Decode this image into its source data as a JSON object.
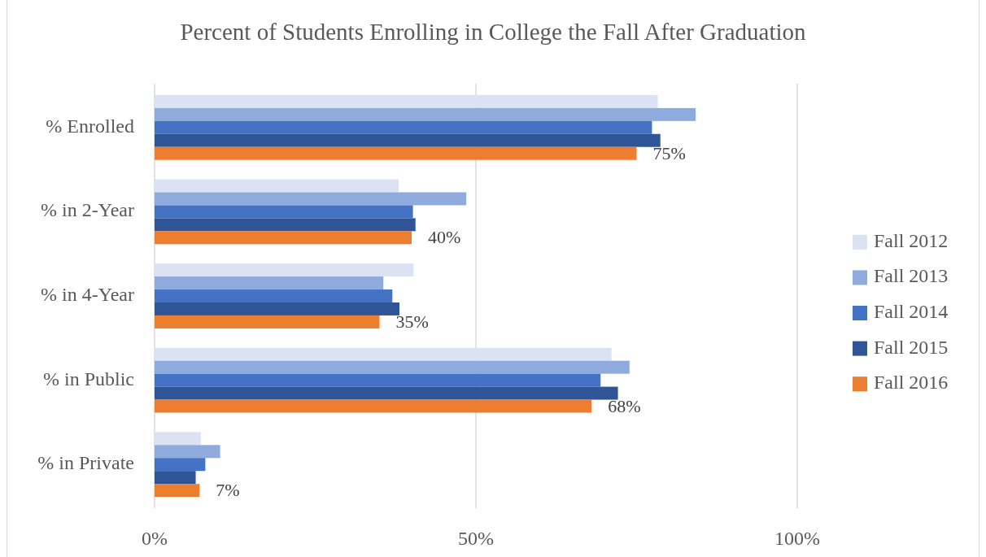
{
  "chart_data": {
    "type": "bar",
    "orientation": "horizontal",
    "title": "Percent of Students Enrolling in College the Fall After Graduation",
    "categories": [
      "% Enrolled",
      "% in 2-Year",
      "% in 4-Year",
      "% in Public",
      "% in Private"
    ],
    "series": [
      {
        "name": "Fall 2012",
        "color": "#dae2f3",
        "values": [
          78.3,
          38.0,
          40.3,
          71.1,
          7.2
        ]
      },
      {
        "name": "Fall 2013",
        "color": "#8faadc",
        "values": [
          84.2,
          48.5,
          35.6,
          73.9,
          10.2
        ]
      },
      {
        "name": "Fall 2014",
        "color": "#4472c4",
        "values": [
          77.4,
          40.2,
          37.0,
          69.4,
          7.9
        ]
      },
      {
        "name": "Fall 2015",
        "color": "#2f5597",
        "values": [
          78.7,
          40.6,
          38.1,
          72.1,
          6.4
        ]
      },
      {
        "name": "Fall 2016",
        "color": "#ed7d31",
        "values": [
          75,
          40,
          35,
          68,
          7
        ],
        "value_labels": [
          "75%",
          "40%",
          "35%",
          "68%",
          "7%"
        ]
      }
    ],
    "xlim": [
      0,
      100
    ],
    "xticks": [
      {
        "value": 0,
        "label": "0%"
      },
      {
        "value": 50,
        "label": "50%"
      },
      {
        "value": 100,
        "label": "100%"
      }
    ],
    "grid": "x",
    "legend": "right"
  }
}
